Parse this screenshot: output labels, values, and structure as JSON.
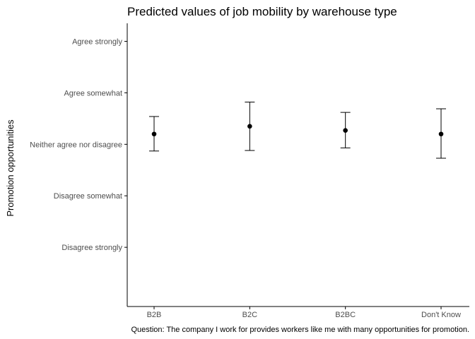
{
  "chart_data": {
    "type": "scatter",
    "title": "Predicted values of job mobility by warehouse type",
    "xlabel": "",
    "ylabel": "Promotion opportunities",
    "caption": "Question: The company I work for provides workers like me with many opportunities for promotion.",
    "categories": [
      "B2B",
      "B2C",
      "B2BC",
      "Don't Know"
    ],
    "y_ticks": [
      1,
      2,
      3,
      4,
      5
    ],
    "y_tick_labels": [
      "Disagree strongly",
      "Disagree somewhat",
      "Neither agree nor disagree",
      "Agree somewhat",
      "Agree strongly"
    ],
    "ylim": [
      -0.15,
      5.35
    ],
    "series": [
      {
        "values": [
          3.2,
          3.35,
          3.27,
          3.2
        ],
        "lower": [
          2.87,
          2.88,
          2.93,
          2.73
        ],
        "upper": [
          3.54,
          3.82,
          3.62,
          3.69
        ]
      }
    ],
    "grid": false,
    "legend": "none",
    "colors": {
      "point": "#000000",
      "axis": "#000000",
      "text": "#4d4d4d"
    }
  }
}
